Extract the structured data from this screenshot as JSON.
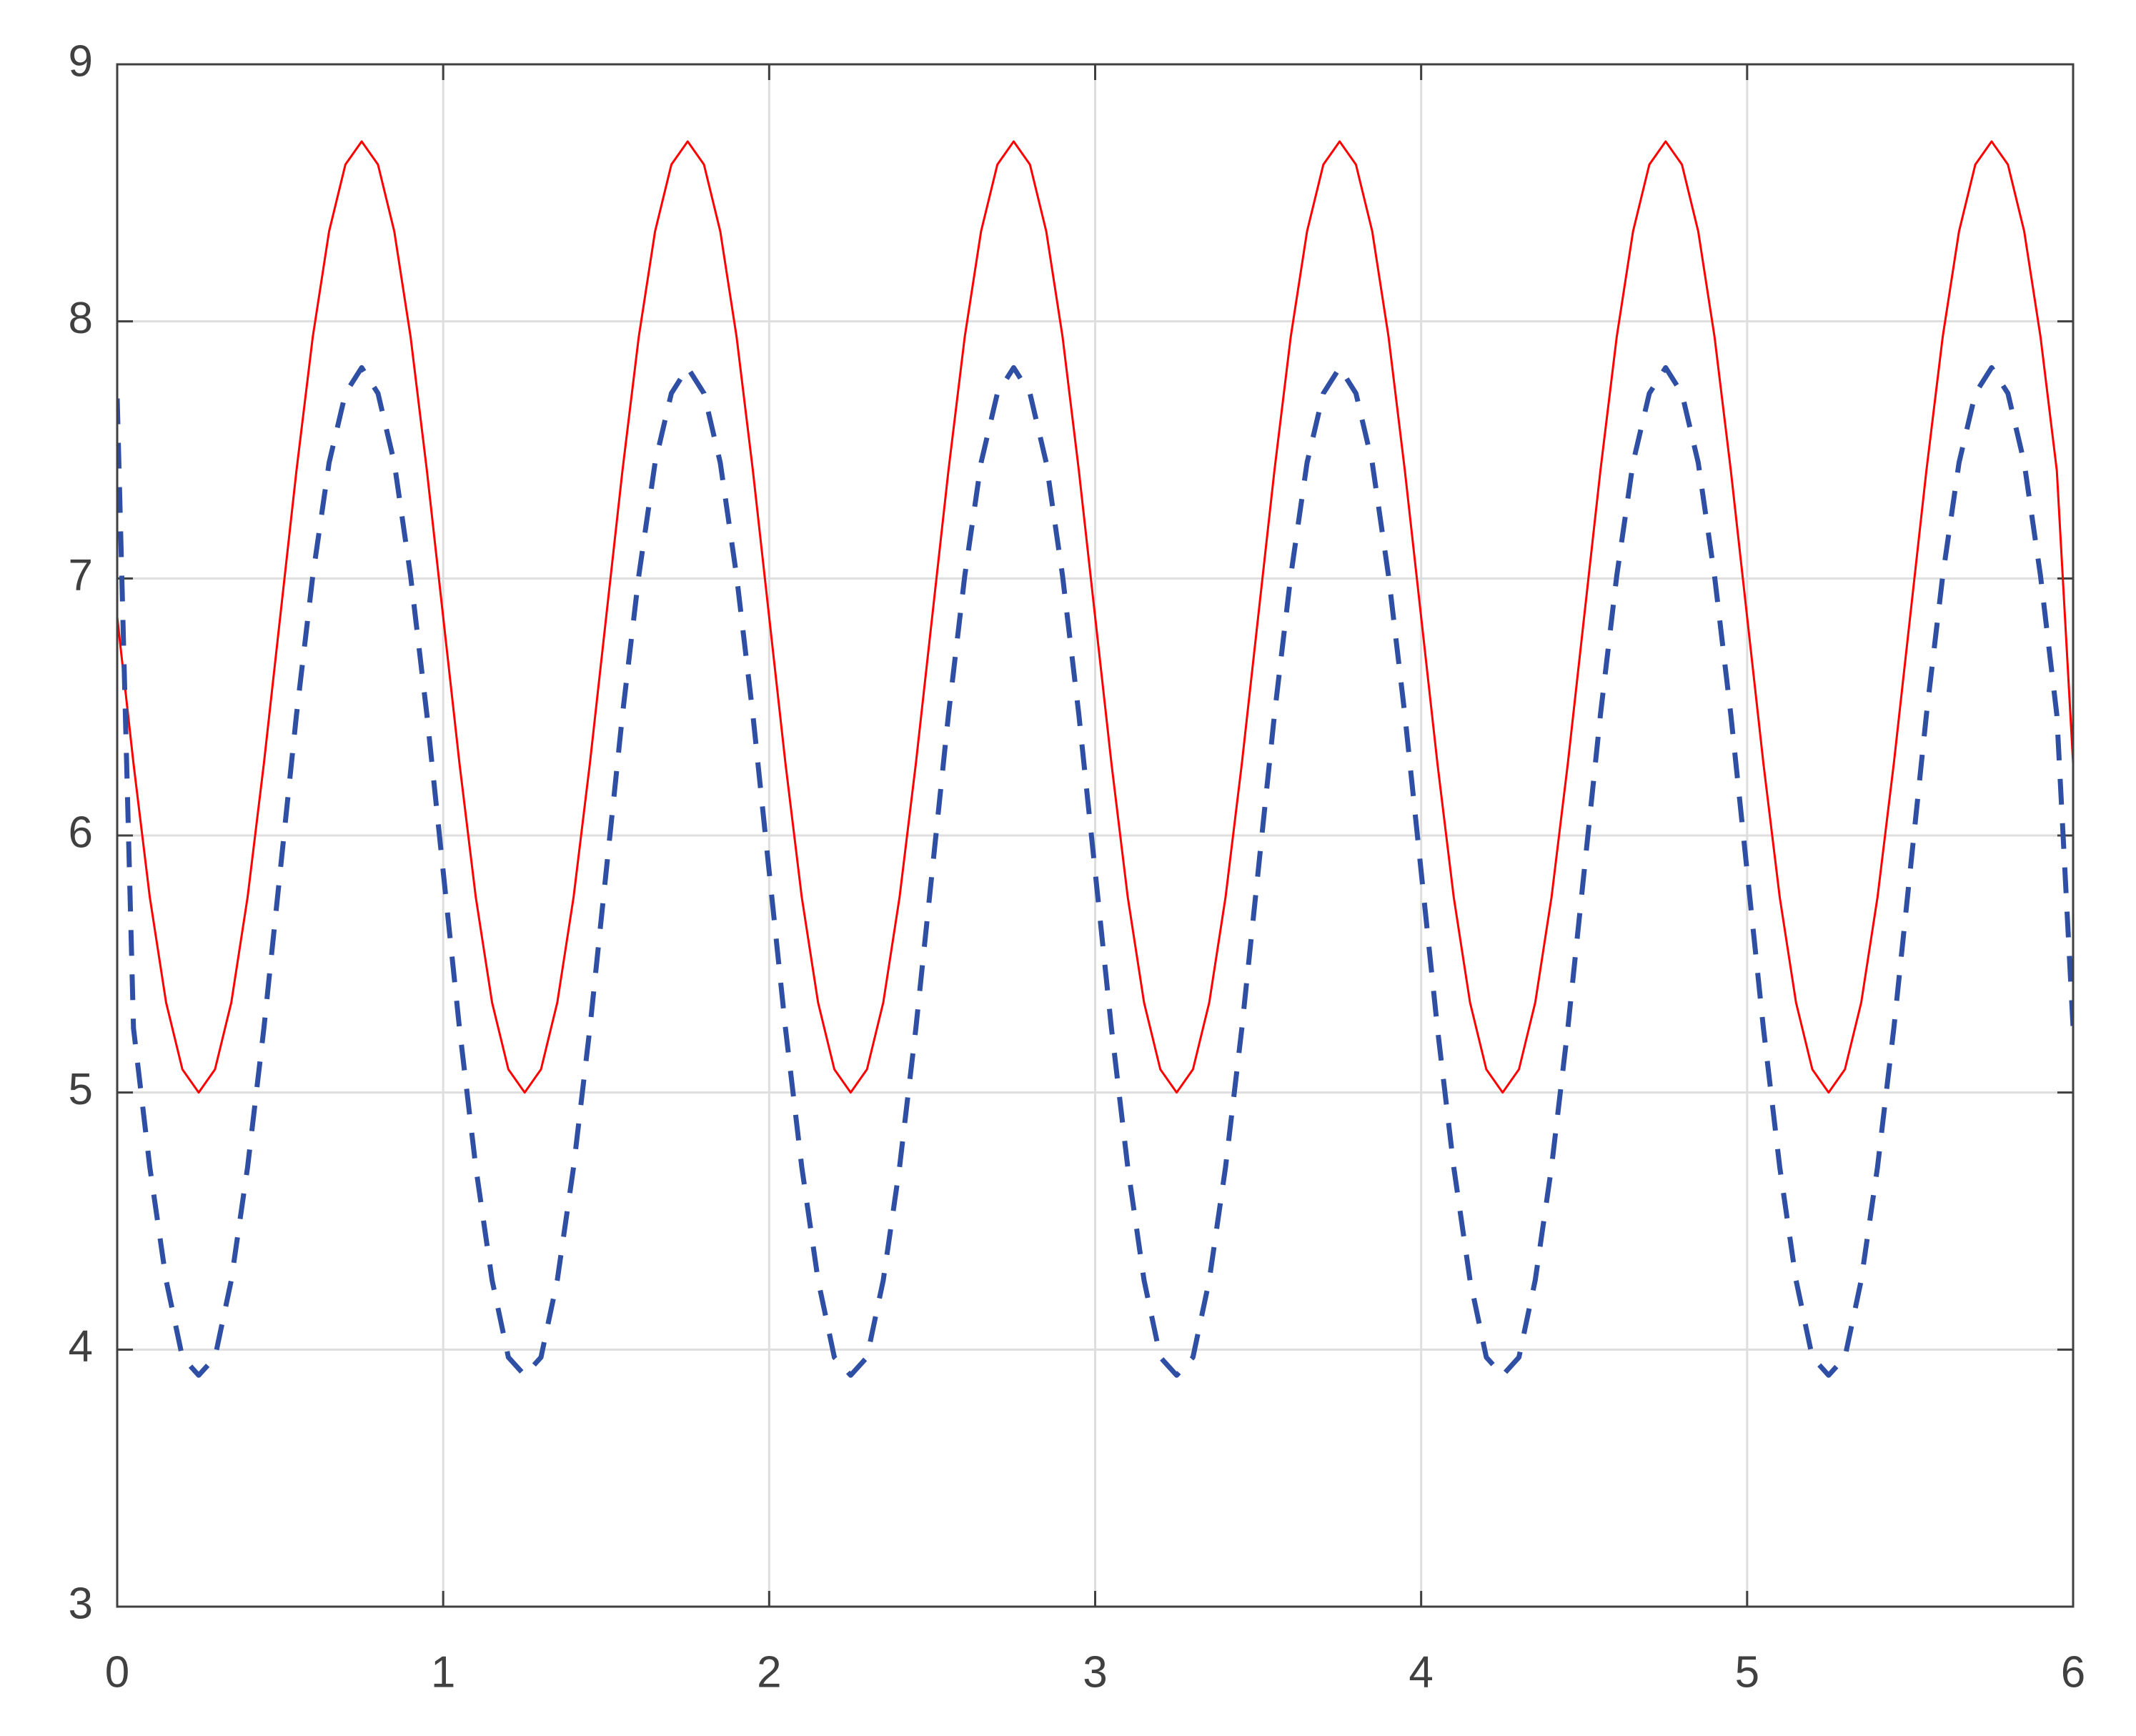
{
  "chart_data": {
    "type": "line",
    "x": [
      0,
      0.05,
      0.1,
      0.15,
      0.2,
      0.25,
      0.3,
      0.35,
      0.4,
      0.45,
      0.5,
      0.55,
      0.6,
      0.65,
      0.7,
      0.75,
      0.8,
      0.85,
      0.9,
      0.95,
      1,
      1.05,
      1.1,
      1.15,
      1.2,
      1.25,
      1.3,
      1.35,
      1.4,
      1.45,
      1.5,
      1.55,
      1.6,
      1.65,
      1.7,
      1.75,
      1.8,
      1.85,
      1.9,
      1.95,
      2,
      2.05,
      2.1,
      2.15,
      2.2,
      2.25,
      2.3,
      2.35,
      2.4,
      2.45,
      2.5,
      2.55,
      2.6,
      2.65,
      2.7,
      2.75,
      2.8,
      2.85,
      2.9,
      2.95,
      3,
      3.05,
      3.1,
      3.15,
      3.2,
      3.25,
      3.3,
      3.35,
      3.4,
      3.45,
      3.5,
      3.55,
      3.6,
      3.65,
      3.7,
      3.75,
      3.8,
      3.85,
      3.9,
      3.95,
      4,
      4.05,
      4.1,
      4.15,
      4.2,
      4.25,
      4.3,
      4.35,
      4.4,
      4.45,
      4.5,
      4.55,
      4.6,
      4.65,
      4.7,
      4.75,
      4.8,
      4.85,
      4.9,
      4.95,
      5,
      5.05,
      5.1,
      5.15,
      5.2,
      5.25,
      5.3,
      5.35,
      5.4,
      5.45,
      5.5,
      5.55,
      5.6,
      5.65,
      5.7,
      5.75,
      5.8,
      5.85,
      5.9,
      5.95,
      6
    ],
    "series": [
      {
        "color": "#ff0000",
        "dash": "solid",
        "values": [
          6.85,
          6.28,
          5.76,
          5.35,
          5.09,
          5.0,
          5.09,
          5.35,
          5.76,
          6.28,
          6.85,
          7.42,
          7.94,
          8.35,
          8.61,
          8.7,
          8.61,
          8.35,
          7.94,
          7.42,
          6.85,
          6.28,
          5.76,
          5.35,
          5.09,
          5.0,
          5.09,
          5.35,
          5.76,
          6.28,
          6.85,
          7.42,
          7.94,
          8.35,
          8.61,
          8.7,
          8.61,
          8.35,
          7.94,
          7.42,
          6.85,
          6.28,
          5.76,
          5.35,
          5.09,
          5.0,
          5.09,
          5.35,
          5.76,
          6.28,
          6.85,
          7.42,
          7.94,
          8.35,
          8.61,
          8.7,
          8.61,
          8.35,
          7.94,
          7.42,
          6.85,
          6.28,
          5.76,
          5.35,
          5.09,
          5.0,
          5.09,
          5.35,
          5.76,
          6.28,
          6.85,
          7.42,
          7.94,
          8.35,
          8.61,
          8.7,
          8.61,
          8.35,
          7.94,
          7.42,
          6.85,
          6.28,
          5.76,
          5.35,
          5.09,
          5.0,
          5.09,
          5.35,
          5.76,
          6.28,
          6.85,
          7.42,
          7.94,
          8.35,
          8.61,
          8.7,
          8.61,
          8.35,
          7.94,
          7.42,
          6.85,
          6.28,
          5.76,
          5.35,
          5.09,
          5.0,
          5.09,
          5.35,
          5.76,
          6.28,
          6.85,
          7.42,
          7.94,
          8.35,
          8.61,
          8.7,
          8.61,
          8.35,
          7.94,
          7.42,
          6.28
        ]
      },
      {
        "color": "#2e4fa3",
        "dash": "dashed",
        "values": [
          7.7,
          5.25,
          4.71,
          4.27,
          3.97,
          3.9,
          3.97,
          4.27,
          4.71,
          5.25,
          5.86,
          6.47,
          7.01,
          7.45,
          7.72,
          7.82,
          7.72,
          7.45,
          7.01,
          6.47,
          5.86,
          5.25,
          4.71,
          4.27,
          3.97,
          3.9,
          3.97,
          4.27,
          4.71,
          5.25,
          5.86,
          6.47,
          7.01,
          7.45,
          7.72,
          7.82,
          7.72,
          7.45,
          7.01,
          6.47,
          5.86,
          5.25,
          4.71,
          4.27,
          3.97,
          3.9,
          3.97,
          4.27,
          4.71,
          5.25,
          5.86,
          6.47,
          7.01,
          7.45,
          7.72,
          7.82,
          7.72,
          7.45,
          7.01,
          6.47,
          5.86,
          5.25,
          4.71,
          4.27,
          3.97,
          3.9,
          3.97,
          4.27,
          4.71,
          5.25,
          5.86,
          6.47,
          7.01,
          7.45,
          7.72,
          7.82,
          7.72,
          7.45,
          7.01,
          6.47,
          5.86,
          5.25,
          4.71,
          4.27,
          3.97,
          3.9,
          3.97,
          4.27,
          4.71,
          5.25,
          5.86,
          6.47,
          7.01,
          7.45,
          7.72,
          7.82,
          7.72,
          7.45,
          7.01,
          6.47,
          5.86,
          5.25,
          4.71,
          4.27,
          3.97,
          3.9,
          3.97,
          4.27,
          4.71,
          5.25,
          5.86,
          6.47,
          7.01,
          7.45,
          7.72,
          7.82,
          7.72,
          7.45,
          7.01,
          6.47,
          5.25
        ]
      }
    ],
    "xlim": [
      0,
      6
    ],
    "xticks": [
      0,
      1,
      2,
      3,
      4,
      5,
      6
    ],
    "ylim": [
      3,
      9
    ],
    "yticks": [
      3,
      4,
      5,
      6,
      7,
      8,
      9
    ],
    "grid": true
  }
}
